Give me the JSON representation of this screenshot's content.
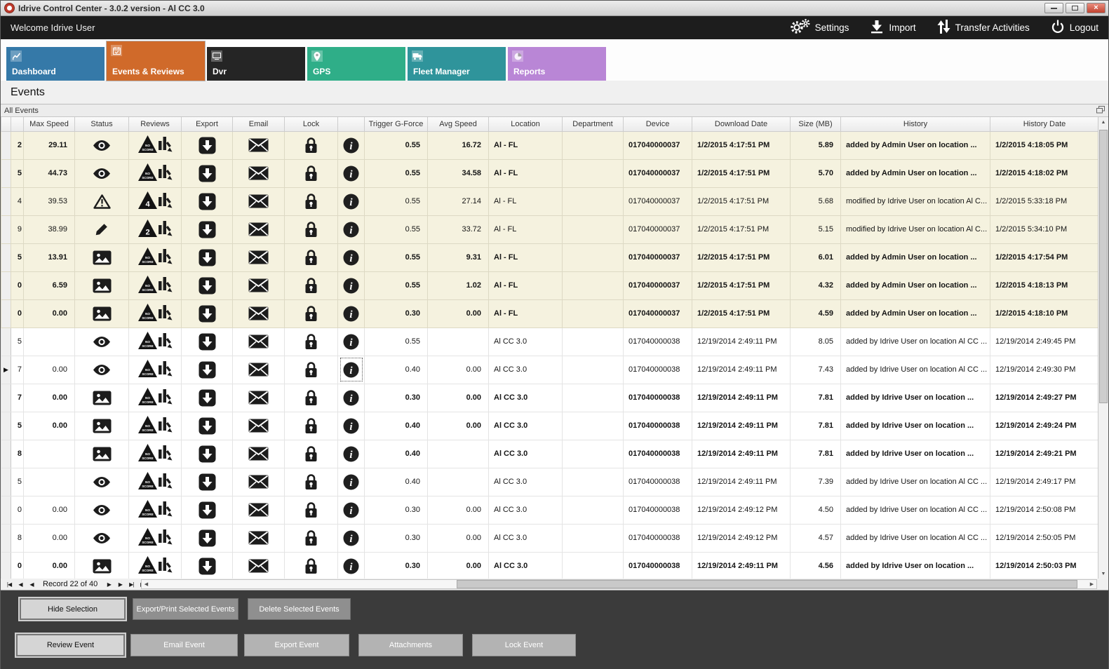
{
  "window": {
    "title": "Idrive Control Center - 3.0.2 version - Al CC 3.0"
  },
  "header": {
    "welcome": "Welcome Idrive User",
    "actions": [
      {
        "label": "Settings",
        "icon": "gears-icon"
      },
      {
        "label": "Import",
        "icon": "import-icon"
      },
      {
        "label": "Transfer Activities",
        "icon": "transfer-icon"
      },
      {
        "label": "Logout",
        "icon": "power-icon"
      }
    ]
  },
  "tabs": [
    {
      "label": "Dashboard",
      "color": "#3579a8",
      "icon": "line-chart-icon",
      "selected": false
    },
    {
      "label": "Events & Reviews",
      "color": "#d06a2a",
      "icon": "calendar-icon",
      "selected": true
    },
    {
      "label": "Dvr",
      "color": "#252525",
      "icon": "dvr-icon",
      "selected": false
    },
    {
      "label": "GPS",
      "color": "#2fae88",
      "icon": "map-pin-icon",
      "selected": false
    },
    {
      "label": "Fleet Manager",
      "color": "#2f949b",
      "icon": "truck-icon",
      "selected": false
    },
    {
      "label": "Reports",
      "color": "#b986d6",
      "icon": "pie-chart-icon",
      "selected": false
    }
  ],
  "page_title": "Events",
  "panel": {
    "title": "All Events"
  },
  "icons": {
    "settings": "double-gears",
    "import": "arrow-down-to-tray",
    "transfer": "up-down-arrows",
    "logout": "power-symbol",
    "status_eye": "eye",
    "status_warning": "warning-triangle",
    "status_pencil": "pencil",
    "status_image": "picture",
    "reviews": "score-triangle-with-chart",
    "export": "down-arrow-square",
    "email": "envelope",
    "lock": "padlock",
    "info": "info-circle"
  },
  "grid": {
    "columns": [
      "Max Speed",
      "Status",
      "Reviews",
      "Export",
      "Email",
      "Lock",
      "Trigger G-Force",
      "Avg Speed",
      "Location",
      "Department",
      "Device",
      "Download Date",
      "Size (MB)",
      "History",
      "History Date"
    ],
    "rows": [
      {
        "partial": "2",
        "max_speed": "29.11",
        "status": "eye",
        "score": "NO SCORE",
        "trigger": "0.55",
        "avg_speed": "16.72",
        "location": "Al - FL",
        "department": "",
        "device": "017040000037",
        "download_date": "1/2/2015 4:17:51 PM",
        "size": "5.89",
        "history": "added by Admin User on location ...",
        "history_date": "1/2/2015 4:18:05 PM",
        "bold": true,
        "beige": true,
        "current": false,
        "focus_info": false
      },
      {
        "partial": "5",
        "max_speed": "44.73",
        "status": "eye",
        "score": "NO SCORE",
        "trigger": "0.55",
        "avg_speed": "34.58",
        "location": "Al - FL",
        "department": "",
        "device": "017040000037",
        "download_date": "1/2/2015 4:17:51 PM",
        "size": "5.70",
        "history": "added by Admin User on location ...",
        "history_date": "1/2/2015 4:18:02 PM",
        "bold": true,
        "beige": true,
        "current": false,
        "focus_info": false
      },
      {
        "partial": "4",
        "max_speed": "39.53",
        "status": "warning",
        "score": "4",
        "trigger": "0.55",
        "avg_speed": "27.14",
        "location": "Al - FL",
        "department": "",
        "device": "017040000037",
        "download_date": "1/2/2015 4:17:51 PM",
        "size": "5.68",
        "history": "modified by Idrive User on location Al C...",
        "history_date": "1/2/2015 5:33:18 PM",
        "bold": false,
        "beige": true,
        "current": false,
        "focus_info": false
      },
      {
        "partial": "9",
        "max_speed": "38.99",
        "status": "pencil",
        "score": "2",
        "trigger": "0.55",
        "avg_speed": "33.72",
        "location": "Al - FL",
        "department": "",
        "device": "017040000037",
        "download_date": "1/2/2015 4:17:51 PM",
        "size": "5.15",
        "history": "modified by Idrive User on location Al C...",
        "history_date": "1/2/2015 5:34:10 PM",
        "bold": false,
        "beige": true,
        "current": false,
        "focus_info": false
      },
      {
        "partial": "5",
        "max_speed": "13.91",
        "status": "image",
        "score": "NO SCORE",
        "trigger": "0.55",
        "avg_speed": "9.31",
        "location": "Al - FL",
        "department": "",
        "device": "017040000037",
        "download_date": "1/2/2015 4:17:51 PM",
        "size": "6.01",
        "history": "added by Admin User on location ...",
        "history_date": "1/2/2015 4:17:54 PM",
        "bold": true,
        "beige": true,
        "current": false,
        "focus_info": false
      },
      {
        "partial": "0",
        "max_speed": "6.59",
        "status": "image",
        "score": "NO SCORE",
        "trigger": "0.55",
        "avg_speed": "1.02",
        "location": "Al - FL",
        "department": "",
        "device": "017040000037",
        "download_date": "1/2/2015 4:17:51 PM",
        "size": "4.32",
        "history": "added by Admin User on location ...",
        "history_date": "1/2/2015 4:18:13 PM",
        "bold": true,
        "beige": true,
        "current": false,
        "focus_info": false
      },
      {
        "partial": "0",
        "max_speed": "0.00",
        "status": "image",
        "score": "NO SCORE",
        "trigger": "0.30",
        "avg_speed": "0.00",
        "location": "Al - FL",
        "department": "",
        "device": "017040000037",
        "download_date": "1/2/2015 4:17:51 PM",
        "size": "4.59",
        "history": "added by Admin User on location ...",
        "history_date": "1/2/2015 4:18:10 PM",
        "bold": true,
        "beige": true,
        "current": false,
        "focus_info": false
      },
      {
        "partial": "5",
        "max_speed": "",
        "status": "eye",
        "score": "NO SCORE",
        "trigger": "0.55",
        "avg_speed": "",
        "location": "Al CC 3.0",
        "department": "",
        "device": "017040000038",
        "download_date": "12/19/2014 2:49:11 PM",
        "size": "8.05",
        "history": "added by Idrive User on location Al CC ...",
        "history_date": "12/19/2014 2:49:45 PM",
        "bold": false,
        "beige": false,
        "current": false,
        "focus_info": false
      },
      {
        "partial": "7",
        "max_speed": "0.00",
        "status": "eye",
        "score": "NO SCORE",
        "trigger": "0.40",
        "avg_speed": "0.00",
        "location": "Al CC 3.0",
        "department": "",
        "device": "017040000038",
        "download_date": "12/19/2014 2:49:11 PM",
        "size": "7.43",
        "history": "added by Idrive User on location Al CC ...",
        "history_date": "12/19/2014 2:49:30 PM",
        "bold": false,
        "beige": false,
        "current": true,
        "focus_info": true
      },
      {
        "partial": "7",
        "max_speed": "0.00",
        "status": "image",
        "score": "NO SCORE",
        "trigger": "0.30",
        "avg_speed": "0.00",
        "location": "Al CC 3.0",
        "department": "",
        "device": "017040000038",
        "download_date": "12/19/2014 2:49:11 PM",
        "size": "7.81",
        "history": "added by Idrive User on location ...",
        "history_date": "12/19/2014 2:49:27 PM",
        "bold": true,
        "beige": false,
        "current": false,
        "focus_info": false
      },
      {
        "partial": "5",
        "max_speed": "0.00",
        "status": "image",
        "score": "NO SCORE",
        "trigger": "0.40",
        "avg_speed": "0.00",
        "location": "Al CC 3.0",
        "department": "",
        "device": "017040000038",
        "download_date": "12/19/2014 2:49:11 PM",
        "size": "7.81",
        "history": "added by Idrive User on location ...",
        "history_date": "12/19/2014 2:49:24 PM",
        "bold": true,
        "beige": false,
        "current": false,
        "focus_info": false
      },
      {
        "partial": "8",
        "max_speed": "",
        "status": "image",
        "score": "NO SCORE",
        "trigger": "0.40",
        "avg_speed": "",
        "location": "Al CC 3.0",
        "department": "",
        "device": "017040000038",
        "download_date": "12/19/2014 2:49:11 PM",
        "size": "7.81",
        "history": "added by Idrive User on location ...",
        "history_date": "12/19/2014 2:49:21 PM",
        "bold": true,
        "beige": false,
        "current": false,
        "focus_info": false
      },
      {
        "partial": "5",
        "max_speed": "",
        "status": "eye",
        "score": "NO SCORE",
        "trigger": "0.40",
        "avg_speed": "",
        "location": "Al CC 3.0",
        "department": "",
        "device": "017040000038",
        "download_date": "12/19/2014 2:49:11 PM",
        "size": "7.39",
        "history": "added by Idrive User on location Al CC ...",
        "history_date": "12/19/2014 2:49:17 PM",
        "bold": false,
        "beige": false,
        "current": false,
        "focus_info": false
      },
      {
        "partial": "0",
        "max_speed": "0.00",
        "status": "eye",
        "score": "NO SCORE",
        "trigger": "0.30",
        "avg_speed": "0.00",
        "location": "Al CC 3.0",
        "department": "",
        "device": "017040000038",
        "download_date": "12/19/2014 2:49:12 PM",
        "size": "4.50",
        "history": "added by Idrive User on location Al CC ...",
        "history_date": "12/19/2014 2:50:08 PM",
        "bold": false,
        "beige": false,
        "current": false,
        "focus_info": false
      },
      {
        "partial": "8",
        "max_speed": "0.00",
        "status": "eye",
        "score": "NO SCORE",
        "trigger": "0.30",
        "avg_speed": "0.00",
        "location": "Al CC 3.0",
        "department": "",
        "device": "017040000038",
        "download_date": "12/19/2014 2:49:12 PM",
        "size": "4.57",
        "history": "added by Idrive User on location Al CC ...",
        "history_date": "12/19/2014 2:50:05 PM",
        "bold": false,
        "beige": false,
        "current": false,
        "focus_info": false
      },
      {
        "partial": "0",
        "max_speed": "0.00",
        "status": "image",
        "score": "NO SCORE",
        "trigger": "0.30",
        "avg_speed": "0.00",
        "location": "Al CC 3.0",
        "department": "",
        "device": "017040000038",
        "download_date": "12/19/2014 2:49:11 PM",
        "size": "4.56",
        "history": "added by Idrive User on location ...",
        "history_date": "12/19/2014 2:50:03 PM",
        "bold": true,
        "beige": false,
        "current": false,
        "focus_info": false
      }
    ]
  },
  "navigator": {
    "record_text": "Record 22 of 40"
  },
  "footer": {
    "row1": [
      "Hide Selection",
      "Export/Print Selected Events",
      "Delete Selected Events"
    ],
    "row2": [
      "Review Event",
      "Email Event",
      "Export Event",
      "Attachments",
      "Lock Event"
    ]
  }
}
